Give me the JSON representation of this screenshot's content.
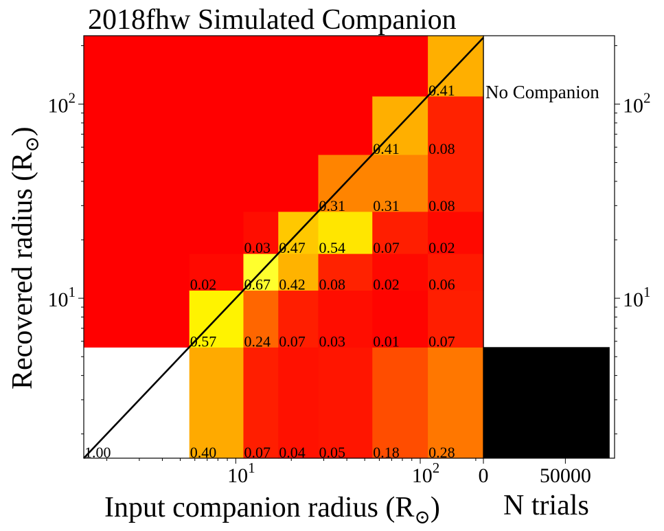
{
  "chart_data": {
    "type": "heatmap",
    "title": "2018fhw Simulated Companion",
    "xlabel": "Input companion radius (R",
    "ylabel": "Recovered radius (R",
    "label_subscript": "⊙",
    "side_xlabel": "N trials",
    "no_companion_label": "No Companion",
    "x_scale": "log",
    "y_scale": "log",
    "xlim": [
      1.5,
      220
    ],
    "ylim": [
      1.5,
      225
    ],
    "colormap": "hot (normalized per input column)",
    "x_bin_edges": [
      1.5,
      5.6,
      11,
      17,
      28,
      55,
      110,
      220
    ],
    "y_bin_edges": [
      1.5,
      5.6,
      11,
      17,
      28,
      55,
      110,
      225
    ],
    "columns": [
      {
        "values": [
          1.0,
          0,
          0,
          0,
          0,
          0,
          0
        ],
        "labels": [
          "1.00",
          null,
          null,
          null,
          null,
          null,
          null
        ]
      },
      {
        "values": [
          0.4,
          0.57,
          0.02,
          0,
          0,
          0,
          0
        ],
        "labels": [
          "0.40",
          "0.57",
          "0.02",
          null,
          null,
          null,
          null
        ]
      },
      {
        "values": [
          0.07,
          0.24,
          0.67,
          0.03,
          0,
          0,
          0
        ],
        "labels": [
          "0.07",
          "0.24",
          "0.67",
          "0.03",
          null,
          null,
          null
        ]
      },
      {
        "values": [
          0.04,
          0.07,
          0.42,
          0.47,
          0,
          0,
          0
        ],
        "labels": [
          "0.04",
          "0.07",
          "0.42",
          "0.47",
          null,
          null,
          null
        ]
      },
      {
        "values": [
          0.05,
          0.03,
          0.08,
          0.54,
          0.31,
          0,
          0
        ],
        "labels": [
          "0.05",
          "0.03",
          "0.08",
          "0.54",
          "0.31",
          null,
          null
        ]
      },
      {
        "values": [
          0.18,
          0.01,
          0.02,
          0.07,
          0.31,
          0.41,
          0
        ],
        "labels": [
          "0.18",
          "0.01",
          "0.02",
          "0.07",
          "0.31",
          "0.41",
          null
        ]
      },
      {
        "values": [
          0.28,
          0.07,
          0.06,
          0.02,
          0.08,
          0.08,
          0.41
        ],
        "labels": [
          "0.28",
          "0.07",
          "0.06",
          "0.02",
          "0.08",
          "0.08",
          "0.41"
        ]
      }
    ],
    "diagonal_line": {
      "from": [
        1.5,
        1.5
      ],
      "to": [
        220,
        220
      ]
    },
    "x_major_ticks": [
      {
        "value": 10,
        "base": "10",
        "exp": "1"
      },
      {
        "value": 100,
        "base": "10",
        "exp": "2"
      }
    ],
    "y_major_ticks": [
      {
        "value": 10,
        "base": "10",
        "exp": "1"
      },
      {
        "value": 100,
        "base": "10",
        "exp": "2"
      }
    ],
    "side_panel": {
      "type": "barh",
      "xlim": [
        0,
        80000
      ],
      "x_ticks": [
        0,
        50000
      ],
      "x_tick_labels": [
        "0",
        "50000"
      ],
      "bar": {
        "y_range": [
          1.5,
          5.6
        ],
        "value": 77000,
        "color": "#000000"
      }
    }
  }
}
